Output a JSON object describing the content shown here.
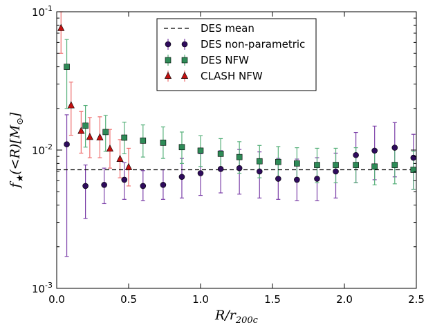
{
  "chart_data": {
    "type": "scatter",
    "xlabel": "R/r_200c",
    "ylabel": "f_★(<R)[M_⊙]",
    "xlim": [
      0,
      2.5
    ],
    "ylim": [
      0.001,
      0.1
    ],
    "yscale": "log",
    "xticks": [
      "0.0",
      "0.5",
      "1.0",
      "1.5",
      "2.0",
      "2.5"
    ],
    "yticks": [
      {
        "value": 0.1,
        "base": "10",
        "exp": "-1"
      },
      {
        "value": 0.01,
        "base": "10",
        "exp": "-2"
      },
      {
        "value": 0.001,
        "base": "10",
        "exp": "-3"
      }
    ],
    "legend_position": "top-center",
    "des_mean": {
      "name": "DES mean",
      "y": 0.0072,
      "color": "#000000"
    },
    "series": [
      {
        "name": "DES non-parametric",
        "marker": "circle",
        "color": "#2e0b5c",
        "errcolor": "#7b3fa8",
        "x": [
          0.07,
          0.2,
          0.33,
          0.47,
          0.6,
          0.74,
          0.87,
          1.0,
          1.14,
          1.27,
          1.41,
          1.54,
          1.67,
          1.81,
          1.94,
          2.08,
          2.21,
          2.35,
          2.48
        ],
        "y": [
          0.011,
          0.0055,
          0.0056,
          0.0061,
          0.0055,
          0.0056,
          0.0064,
          0.0068,
          0.0073,
          0.0074,
          0.007,
          0.0062,
          0.0061,
          0.0062,
          0.007,
          0.0092,
          0.0099,
          0.0104,
          0.0088
        ],
        "lo": [
          0.0017,
          0.0032,
          0.0041,
          0.0044,
          0.0043,
          0.0044,
          0.0045,
          0.0047,
          0.0049,
          0.0048,
          0.0045,
          0.0044,
          0.0043,
          0.0043,
          0.0045,
          0.0058,
          0.0061,
          0.0064,
          0.0052
        ],
        "hi": [
          0.018,
          0.0078,
          0.0074,
          0.0081,
          0.0071,
          0.0072,
          0.0087,
          0.0094,
          0.0099,
          0.0101,
          0.0097,
          0.0087,
          0.0086,
          0.0088,
          0.0095,
          0.0134,
          0.0149,
          0.0158,
          0.013
        ]
      },
      {
        "name": "DES NFW",
        "marker": "square",
        "color": "#2e8b57",
        "errcolor": "#56b07a",
        "x": [
          0.07,
          0.2,
          0.34,
          0.47,
          0.6,
          0.74,
          0.87,
          1.0,
          1.14,
          1.27,
          1.41,
          1.54,
          1.67,
          1.81,
          1.94,
          2.08,
          2.21,
          2.35,
          2.48
        ],
        "y": [
          0.04,
          0.015,
          0.0135,
          0.0123,
          0.0117,
          0.0113,
          0.0105,
          0.0099,
          0.0094,
          0.0089,
          0.0083,
          0.0082,
          0.008,
          0.0078,
          0.0078,
          0.0078,
          0.0076,
          0.0078,
          0.0072
        ],
        "lo": [
          0.02,
          0.0105,
          0.0098,
          0.0094,
          0.0089,
          0.0087,
          0.008,
          0.0076,
          0.0072,
          0.0068,
          0.0063,
          0.0063,
          0.006,
          0.0058,
          0.0058,
          0.0058,
          0.0056,
          0.0057,
          0.0052
        ],
        "hi": [
          0.063,
          0.021,
          0.0178,
          0.0159,
          0.0152,
          0.0147,
          0.0135,
          0.0127,
          0.0121,
          0.0115,
          0.0108,
          0.0106,
          0.0104,
          0.0103,
          0.0103,
          0.0104,
          0.0102,
          0.0104,
          0.0098
        ]
      },
      {
        "name": "CLASH NFW",
        "marker": "triangle",
        "color": "#c41010",
        "errcolor": "#ef6f6f",
        "x": [
          0.03,
          0.1,
          0.17,
          0.23,
          0.3,
          0.37,
          0.44,
          0.5
        ],
        "y": [
          0.076,
          0.021,
          0.0137,
          0.0124,
          0.0123,
          0.0102,
          0.0086,
          0.0075
        ],
        "lo": [
          0.05,
          0.0128,
          0.0095,
          0.0088,
          0.0088,
          0.0074,
          0.0063,
          0.0055
        ],
        "hi": [
          0.1,
          0.031,
          0.019,
          0.0172,
          0.0174,
          0.0141,
          0.0119,
          0.0103
        ]
      }
    ]
  }
}
